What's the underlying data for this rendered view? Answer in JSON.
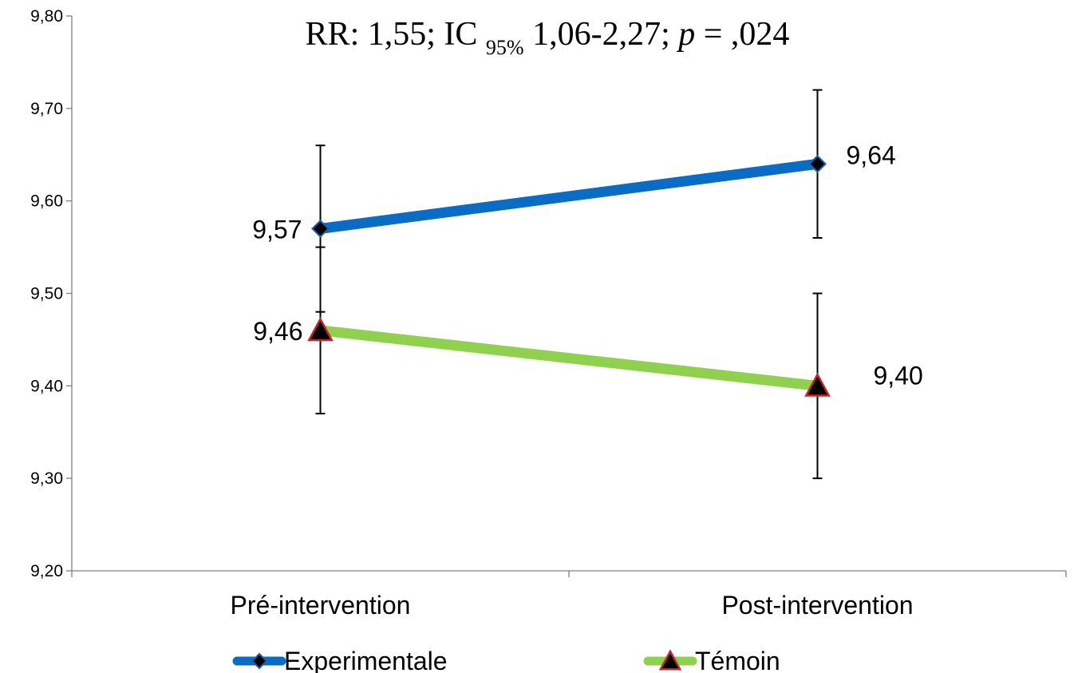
{
  "chart_data": {
    "type": "line",
    "title": {
      "prefix": "RR: 1,55; IC",
      "subscript": "95%",
      "middle": "1,06-2,27;",
      "p_symbol": "p",
      "suffix": "= ,024"
    },
    "categories": [
      "Pré-intervention",
      "Post-intervention"
    ],
    "ylim": [
      9.2,
      9.8
    ],
    "yticks": [
      9.2,
      9.3,
      9.4,
      9.5,
      9.6,
      9.7,
      9.8
    ],
    "ytick_labels": [
      "9,20",
      "9,30",
      "9,40",
      "9,50",
      "9,60",
      "9,70",
      "9,80"
    ],
    "grid": false,
    "legend_position": "bottom",
    "series": [
      {
        "name": "Experimentale",
        "values": [
          9.57,
          9.64
        ],
        "labels": [
          "9,57",
          "9,64"
        ],
        "error_low": [
          9.48,
          9.56
        ],
        "error_high": [
          9.66,
          9.72
        ],
        "color": "#0a6cc4",
        "marker": "diamond",
        "marker_fill": "#000000",
        "marker_stroke": "#1f5fa8"
      },
      {
        "name": "Témoin",
        "values": [
          9.46,
          9.4
        ],
        "labels": [
          "9,46",
          "9,40"
        ],
        "error_low": [
          9.37,
          9.3
        ],
        "error_high": [
          9.55,
          9.5
        ],
        "color": "#8fd14f",
        "marker": "triangle",
        "marker_fill": "#000000",
        "marker_stroke": "#c0282e"
      }
    ]
  }
}
